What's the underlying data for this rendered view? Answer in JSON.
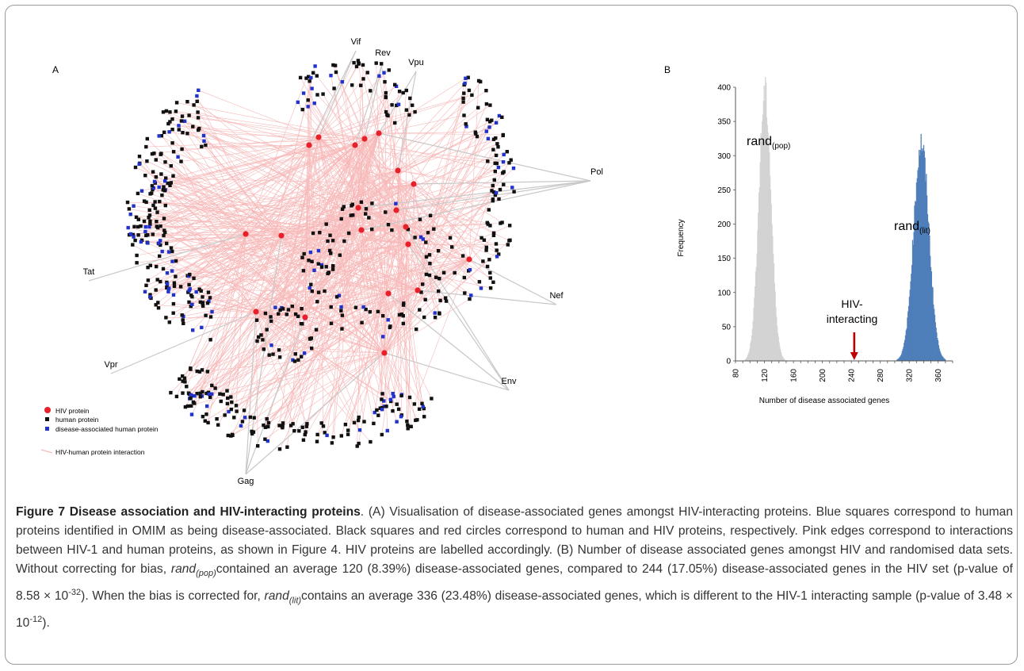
{
  "panel_a": {
    "label": "A",
    "hiv_proteins": [
      "Vif",
      "Rev",
      "Vpu",
      "Pol",
      "Tat",
      "Nef",
      "Vpr",
      "Env",
      "Gag"
    ],
    "legend": {
      "hiv_protein": "HIV protein",
      "human_protein": "human protein",
      "disease_protein": "disease-associated human protein",
      "interaction": "HIV-human protein interaction"
    },
    "colors": {
      "hiv": "#e8202a",
      "human": "#111111",
      "disease": "#2233cc",
      "edge": "#f7b8b8",
      "hiv_edge": "#c8c8c8"
    }
  },
  "panel_b": {
    "label": "B",
    "ylabel": "Frequency",
    "xlabel": "Number of disease associated genes",
    "series_label_pop_main": "rand",
    "series_label_pop_sub": "(pop)",
    "series_label_lit_main": "rand",
    "series_label_lit_sub": "(lit)",
    "annotation_line1": "HIV-",
    "annotation_line2": "interacting"
  },
  "chart_data": {
    "type": "bar",
    "x_ticks": [
      80,
      120,
      160,
      200,
      240,
      280,
      320,
      360
    ],
    "y_ticks": [
      0,
      50,
      100,
      150,
      200,
      250,
      300,
      350,
      400
    ],
    "xlim": [
      80,
      380
    ],
    "ylim": [
      0,
      400
    ],
    "series": [
      {
        "name": "rand(pop)",
        "mean": 120,
        "peak": 390,
        "color": "#d3d3d3"
      },
      {
        "name": "rand(lit)",
        "mean": 336,
        "peak": 318,
        "color": "#4f7fba"
      }
    ],
    "annotation": {
      "x": 244,
      "color": "#c00000"
    }
  },
  "caption": {
    "title": "Figure 7 Disease association and HIV-interacting proteins",
    "t1": ". (A) Visualisation of disease-associated genes amongst HIV-interacting proteins. Blue squares correspond to human proteins identified in OMIM as being disease-associated. Black squares and red circles correspond to human and HIV proteins, respectively. Pink edges correspond to interactions between HIV-1 and human proteins, as shown in Figure 4. HIV proteins are labelled accordingly. (B) Number of disease associated genes amongst HIV and randomised data sets. Without correcting for bias, ",
    "rand": "rand",
    "pop": "(pop)",
    "t2": "contained an average 120 (8.39%) disease-associated genes, compared to 244 (17.05%) disease-associated genes in the HIV set (p-value of 8.58 × 10",
    "exp1": "-32",
    "t3": "). When the bias is corrected for, ",
    "lit": "(lit)",
    "t4": "contains an average 336 (23.48%) disease-associated genes, which is different to the HIV-1 interacting sample (p-value of 3.48 × 10",
    "exp2": "-12",
    "t5": ")."
  }
}
